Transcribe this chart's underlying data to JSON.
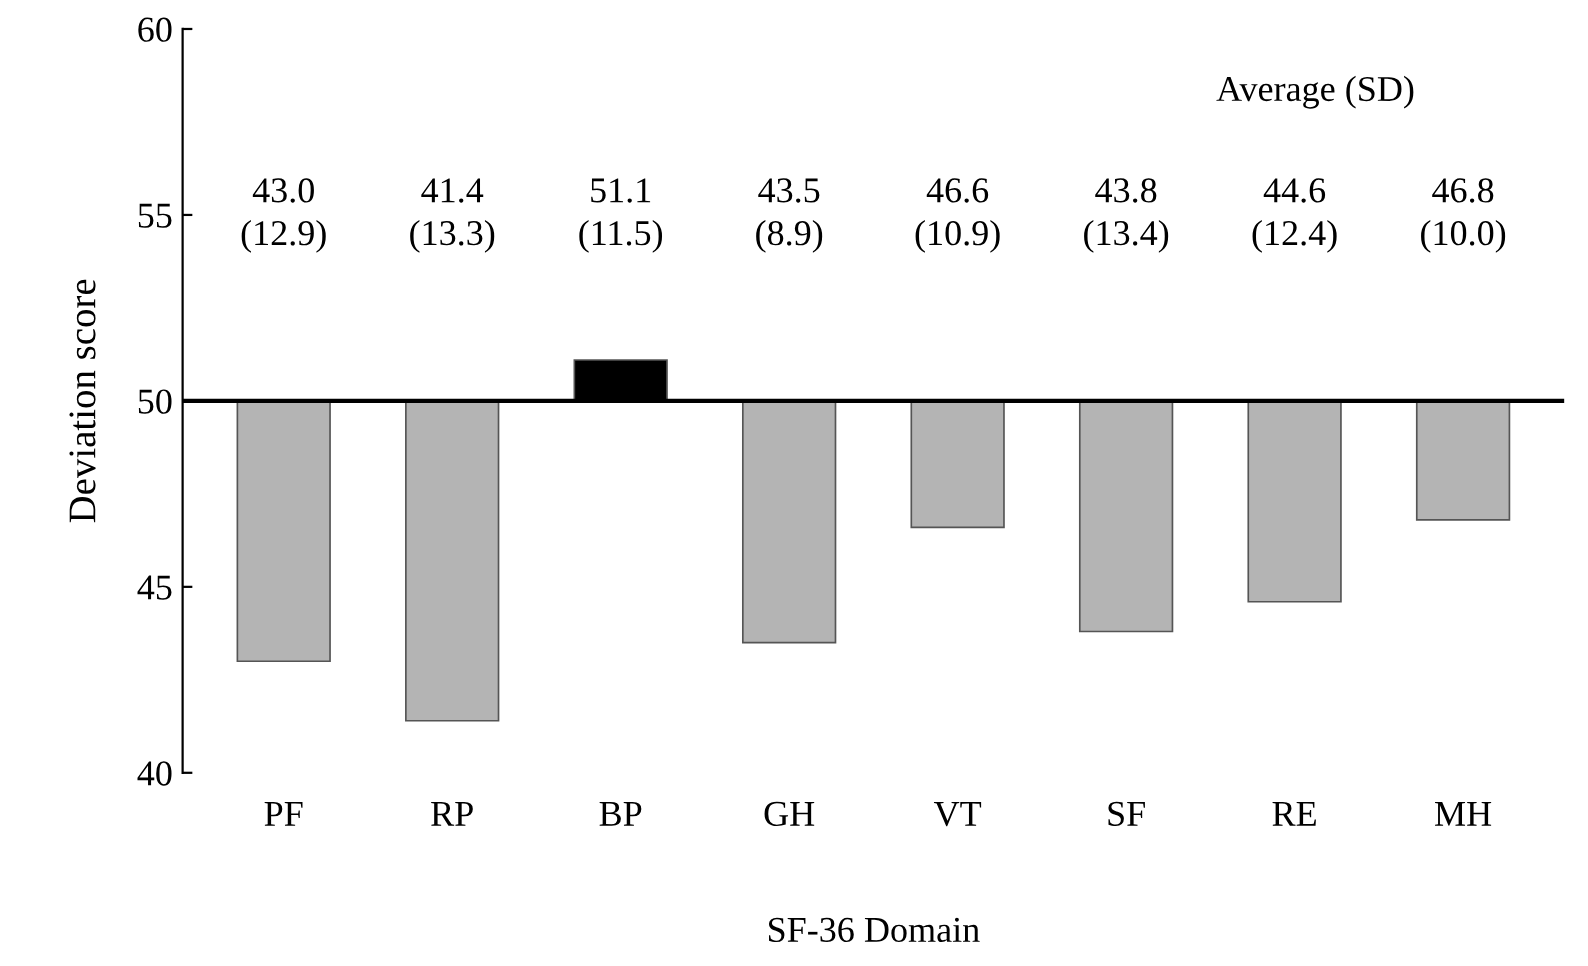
{
  "chart_data": {
    "type": "bar",
    "xlabel": "SF-36 Domain",
    "ylabel": "Deviation score",
    "categories": [
      "PF",
      "RP",
      "BP",
      "GH",
      "VT",
      "SF",
      "RE",
      "MH"
    ],
    "base": [
      50,
      50,
      50,
      50,
      50,
      50,
      50,
      50
    ],
    "values": [
      -7.0,
      -8.6,
      1.1,
      -6.5,
      -3.4,
      -6.2,
      -5.4,
      -3.2
    ],
    "colors": [
      "#b4b4b4",
      "#b4b4b4",
      "#000000",
      "#b4b4b4",
      "#b4b4b4",
      "#b4b4b4",
      "#b4b4b4",
      "#b4b4b4"
    ],
    "annotations": [
      "Average (SD)",
      "43.0\n(12.9)",
      "41.4\n(13.3)",
      "51.1\n(11.5)",
      "43.5\n(8.9)",
      "46.6\n(10.9)",
      "43.8\n(13.4)",
      "44.6\n(12.4)",
      "46.8\n(10.0)"
    ],
    "ref_lines": [
      {
        "axis": "y",
        "value": 50,
        "color": "#000000"
      }
    ],
    "ylim": [
      40,
      60
    ],
    "yticks": [
      40,
      45,
      50,
      55,
      60
    ],
    "grid": false,
    "legend": false
  }
}
